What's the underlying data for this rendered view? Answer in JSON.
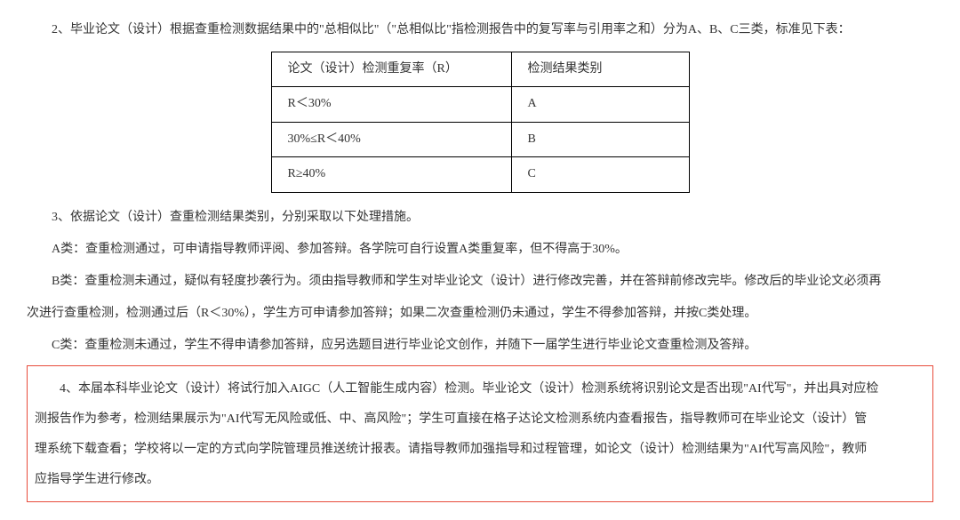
{
  "p_intro": "2、毕业论文（设计）根据查重检测数据结果中的\"总相似比\"（\"总相似比\"指检测报告中的复写率与引用率之和）分为A、B、C三类，标准见下表：",
  "table": {
    "header": {
      "c1": "论文（设计）检测重复率（R）",
      "c2": "检测结果类别"
    },
    "rows": [
      {
        "c1": "R＜30%",
        "c2": "A"
      },
      {
        "c1": "30%≤R＜40%",
        "c2": "B"
      },
      {
        "c1": "R≥40%",
        "c2": "C"
      }
    ]
  },
  "p3": "3、依据论文（设计）查重检测结果类别，分别采取以下处理措施。",
  "pA": "A类：查重检测通过，可申请指导教师评阅、参加答辩。各学院可自行设置A类重复率，但不得高于30%。",
  "pB1": "B类：查重检测未通过，疑似有轻度抄袭行为。须由指导教师和学生对毕业论文（设计）进行修改完善，并在答辩前修改完毕。修改后的毕业论文必须再",
  "pB2": "次进行查重检测，检测通过后（R＜30%），学生方可申请参加答辩；如果二次查重检测仍未通过，学生不得参加答辩，并按C类处理。",
  "pC": "C类：查重检测未通过，学生不得申请参加答辩，应另选题目进行毕业论文创作，并随下一届学生进行毕业论文查重检测及答辩。",
  "box": {
    "l1": "4、本届本科毕业论文（设计）将试行加入AIGC（人工智能生成内容）检测。毕业论文（设计）检测系统将识别论文是否出现\"AI代写\"，并出具对应检",
    "l2": "测报告作为参考，检测结果展示为\"AI代写无风险或低、中、高风险\"；学生可直接在格子达论文检测系统内查看报告，指导教师可在毕业论文（设计）管",
    "l3": "理系统下载查看；学校将以一定的方式向学院管理员推送统计报表。请指导教师加强指导和过程管理，如论文（设计）检测结果为\"AI代写高风险\"，教师",
    "l4": "应指导学生进行修改。"
  }
}
